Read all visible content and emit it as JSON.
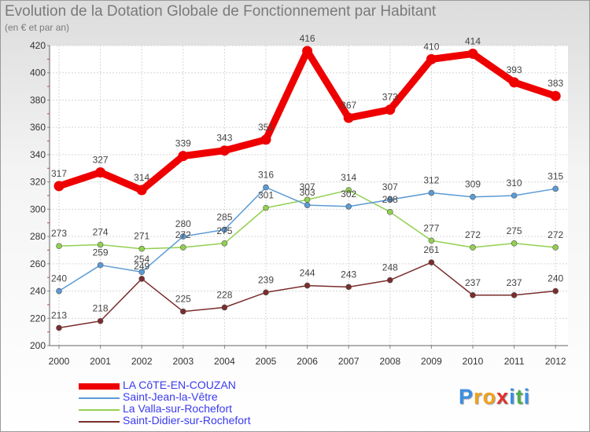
{
  "chart_data": {
    "type": "line",
    "title": "Evolution de la Dotation Globale de Fonctionnement par Habitant",
    "subtitle": "(en € et par an)",
    "x": [
      "2000",
      "2001",
      "2002",
      "2003",
      "2004",
      "2005",
      "2006",
      "2007",
      "2008",
      "2009",
      "2010",
      "2011",
      "2012"
    ],
    "ylim": [
      200,
      420
    ],
    "yticks": [
      200,
      220,
      240,
      260,
      280,
      300,
      320,
      340,
      360,
      380,
      400,
      420
    ],
    "series": [
      {
        "name": "LA CôTE-EN-COUZAN",
        "color": "#ee0000",
        "width": "thick",
        "values": [
          317,
          327,
          314,
          339,
          343,
          351,
          416,
          367,
          373,
          410,
          414,
          393,
          383
        ]
      },
      {
        "name": "Saint-Jean-la-Vêtre",
        "color": "#5b9bd5",
        "width": "thin",
        "values": [
          240,
          259,
          254,
          280,
          285,
          316,
          303,
          302,
          307,
          312,
          309,
          310,
          315
        ]
      },
      {
        "name": "La Valla-sur-Rochefort",
        "color": "#92d050",
        "width": "thin",
        "values": [
          273,
          274,
          271,
          272,
          275,
          301,
          307,
          314,
          298,
          277,
          272,
          275,
          272
        ]
      },
      {
        "name": "Saint-Didier-sur-Rochefort",
        "color": "#7b2c2c",
        "width": "thin",
        "values": [
          213,
          218,
          249,
          225,
          228,
          239,
          244,
          243,
          248,
          261,
          237,
          237,
          240
        ]
      }
    ]
  },
  "logo": {
    "letters": [
      "P",
      "r",
      "o",
      "x",
      "i",
      "t",
      "i"
    ],
    "colors": [
      "#3a8ee6",
      "#f2a21b",
      "#f2a21b",
      "#e0302a",
      "#3a8ee6",
      "#4caf50",
      "#3a8ee6"
    ]
  }
}
